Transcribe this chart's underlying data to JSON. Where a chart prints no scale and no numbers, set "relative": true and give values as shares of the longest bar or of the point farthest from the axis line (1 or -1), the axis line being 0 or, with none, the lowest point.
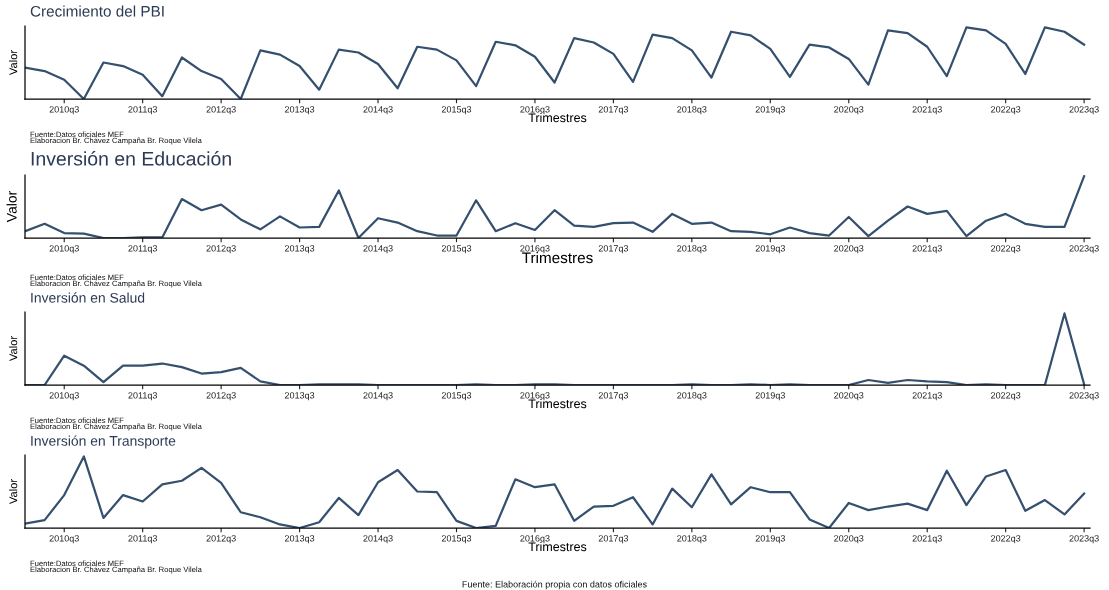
{
  "chart_data": [
    {
      "type": "line",
      "title": "Crecimiento del PBI",
      "xlabel": "Trimestres",
      "ylabel": "Valor",
      "relative": true,
      "grid": false,
      "color": "#34506e",
      "categories": [
        null,
        null,
        "2010q3",
        null,
        null,
        null,
        "2011q3",
        null,
        null,
        null,
        "2012q3",
        null,
        null,
        null,
        "2013q3",
        null,
        null,
        null,
        "2014q3",
        null,
        null,
        null,
        "2015q3",
        null,
        null,
        null,
        "2016q3",
        null,
        null,
        null,
        "2017q3",
        null,
        null,
        null,
        "2018q3",
        null,
        null,
        null,
        "2019q3",
        null,
        null,
        null,
        "2020q3",
        null,
        null,
        null,
        "2021q3",
        null,
        null,
        null,
        "2022q3",
        null,
        null,
        null,
        "2023q3"
      ],
      "values": [
        0.44,
        0.39,
        0.27,
        0,
        0.51,
        0.46,
        0.34,
        0.04,
        0.58,
        0.39,
        0.28,
        0,
        0.68,
        0.62,
        0.46,
        0.13,
        0.69,
        0.65,
        0.49,
        0.15,
        0.73,
        0.69,
        0.54,
        0.18,
        0.8,
        0.75,
        0.59,
        0.23,
        0.85,
        0.79,
        0.63,
        0.24,
        0.9,
        0.85,
        0.68,
        0.3,
        0.94,
        0.89,
        0.7,
        0.31,
        0.76,
        0.72,
        0.56,
        0.2,
        0.96,
        0.92,
        0.73,
        0.32,
        1,
        0.96,
        0.77,
        0.35,
        1,
        0.94,
        0.76
      ],
      "annotations": [
        "Fuente:Datos oficiales MEF",
        "Elaboracion Br. Chávez Campaña Br. Roque Vilela"
      ]
    },
    {
      "type": "line",
      "title": "Inversión en Educación",
      "xlabel": "Trimestres",
      "ylabel": "Valor",
      "relative": true,
      "grid": false,
      "color": "#34506e",
      "categories": [
        null,
        null,
        "2010q3",
        null,
        null,
        null,
        "2011q3",
        null,
        null,
        null,
        "2012q3",
        null,
        null,
        null,
        "2013q3",
        null,
        null,
        null,
        "2014q3",
        null,
        null,
        null,
        "2015q3",
        null,
        null,
        null,
        "2016q3",
        null,
        null,
        null,
        "2017q3",
        null,
        null,
        null,
        "2018q3",
        null,
        null,
        null,
        "2019q3",
        null,
        null,
        null,
        "2020q3",
        null,
        null,
        null,
        "2021q3",
        null,
        null,
        null,
        "2022q3",
        null,
        null,
        null,
        "2023q3"
      ],
      "values": [
        0.11,
        0.23,
        0.08,
        0.07,
        0,
        0,
        0.01,
        0.01,
        0.63,
        0.45,
        0.54,
        0.3,
        0.14,
        0.35,
        0.17,
        0.18,
        0.77,
        0,
        0.32,
        0.25,
        0.11,
        0.04,
        0.04,
        0.61,
        0.11,
        0.24,
        0.13,
        0.45,
        0.2,
        0.18,
        0.24,
        0.25,
        0.1,
        0.39,
        0.23,
        0.25,
        0.11,
        0.1,
        0.06,
        0.17,
        0.08,
        0.04,
        0.34,
        0.03,
        0.28,
        0.51,
        0.39,
        0.44,
        0.03,
        0.28,
        0.39,
        0.23,
        0.18,
        0.18,
        1
      ],
      "annotations": [
        "Fuente:Datos oficiales MEF",
        "Elaboracion Br. Chávez Campaña Br. Roque Vilela"
      ]
    },
    {
      "type": "line",
      "title": "Inversión en Salud",
      "xlabel": "Trimestres",
      "ylabel": "Valor",
      "relative": true,
      "grid": false,
      "color": "#34506e",
      "categories": [
        null,
        null,
        "2010q3",
        null,
        null,
        null,
        "2011q3",
        null,
        null,
        null,
        "2012q3",
        null,
        null,
        null,
        "2013q3",
        null,
        null,
        null,
        "2014q3",
        null,
        null,
        null,
        "2015q3",
        null,
        null,
        null,
        "2016q3",
        null,
        null,
        null,
        "2017q3",
        null,
        null,
        null,
        "2018q3",
        null,
        null,
        null,
        "2019q3",
        null,
        null,
        null,
        "2020q3",
        null,
        null,
        null,
        "2021q3",
        null,
        null,
        null,
        "2022q3",
        null,
        null,
        null,
        "2023q3"
      ],
      "values": [
        0,
        0,
        0.41,
        0.27,
        0.04,
        0.27,
        0.27,
        0.3,
        0.25,
        0.16,
        0.18,
        0.24,
        0.05,
        0,
        0,
        0.01,
        0.01,
        0.01,
        0,
        0,
        0,
        0,
        0,
        0.01,
        0,
        0,
        0.01,
        0.01,
        0,
        0,
        0,
        0,
        0,
        0,
        0.01,
        0,
        0,
        0.01,
        0,
        0.01,
        0,
        0,
        0,
        0.07,
        0.03,
        0.07,
        0.05,
        0.04,
        0,
        0.01,
        0,
        0,
        0,
        1,
        0.01
      ],
      "annotations": [
        "Fuente:Datos oficiales MEF",
        "Elaboracion Br. Chávez Campaña Br. Roque Vilela"
      ]
    },
    {
      "type": "line",
      "title": "Inversión en Transporte",
      "xlabel": "Trimestres",
      "ylabel": "Valor",
      "relative": true,
      "grid": false,
      "color": "#34506e",
      "categories": [
        null,
        null,
        "2010q3",
        null,
        null,
        null,
        "2011q3",
        null,
        null,
        null,
        "2012q3",
        null,
        null,
        null,
        "2013q3",
        null,
        null,
        null,
        "2014q3",
        null,
        null,
        null,
        "2015q3",
        null,
        null,
        null,
        "2016q3",
        null,
        null,
        null,
        "2017q3",
        null,
        null,
        null,
        "2018q3",
        null,
        null,
        null,
        "2019q3",
        null,
        null,
        null,
        "2020q3",
        null,
        null,
        null,
        "2021q3",
        null,
        null,
        null,
        "2022q3",
        null,
        null,
        null,
        "2023q3"
      ],
      "values": [
        0.06,
        0.11,
        0.46,
        1,
        0.14,
        0.46,
        0.37,
        0.61,
        0.66,
        0.84,
        0.63,
        0.22,
        0.15,
        0.05,
        0,
        0.08,
        0.42,
        0.18,
        0.64,
        0.81,
        0.51,
        0.5,
        0.1,
        0,
        0.03,
        0.68,
        0.57,
        0.61,
        0.1,
        0.3,
        0.31,
        0.43,
        0.05,
        0.55,
        0.29,
        0.75,
        0.33,
        0.57,
        0.5,
        0.5,
        0.12,
        0,
        0.35,
        0.25,
        0.3,
        0.34,
        0.25,
        0.8,
        0.32,
        0.72,
        0.81,
        0.24,
        0.39,
        0.19,
        0.48
      ],
      "annotations": [
        "Fuente:Datos oficiales MEF",
        "Elaboracion Br. Chávez Campaña Br. Roque Vilela"
      ]
    },
    {
      "type": "other",
      "annotations": [
        "Fuente: Elaboración propia con datos oficiales"
      ]
    }
  ]
}
